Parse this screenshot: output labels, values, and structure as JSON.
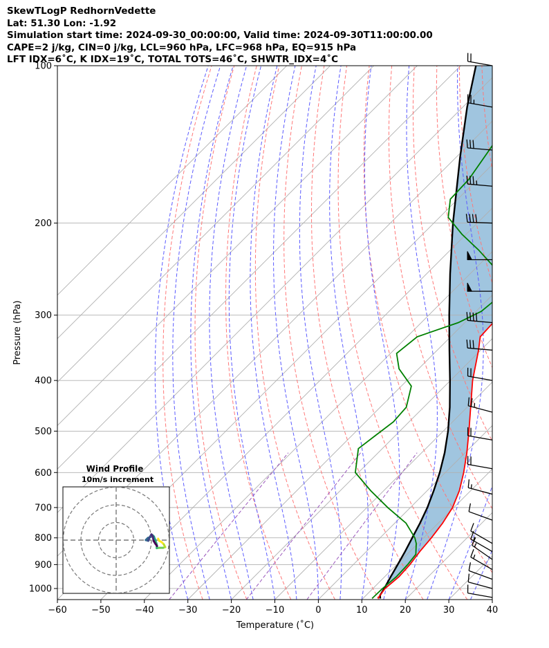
{
  "header": {
    "line1": "SkewTLogP RedhornVedette",
    "line2": "Lat: 51.30   Lon: -1.92",
    "line3": "Simulation start time: 2024-09-30_00:00:00, Valid time: 2024-09-30T11:00:00.00",
    "line4": "CAPE=2 j/kg, CIN=0 j/kg, LCL=960 hPa, LFC=968 hPa, EQ=915 hPa",
    "line5": "LFT IDX=6˚C, K IDX=19˚C, TOTAL TOTS=46˚C, SHWTR_IDX=4˚C"
  },
  "chart_data": {
    "type": "line",
    "xlabel": "Temperature ($^\\circ$C)",
    "xlabel_display": "Temperature (˚C)",
    "ylabel": "Pressure (hPa)",
    "x_ticks": [
      -60,
      -50,
      -40,
      -30,
      -20,
      -10,
      0,
      10,
      20,
      30,
      40
    ],
    "y_ticks": [
      100,
      200,
      300,
      400,
      500,
      600,
      700,
      800,
      900,
      1000
    ],
    "xlim": [
      -60,
      40
    ],
    "ylim": [
      1050,
      100
    ],
    "y_scale": "log",
    "skew": "45 degrees",
    "grid": true,
    "colors": {
      "temperature": "#ff0000",
      "dewpoint": "#008000",
      "parcel": "#000000",
      "cape_fill": "#a0c5df",
      "dry_adiabat": "#ff7777",
      "moist_adiabat": "#5a5aff",
      "mixing_ratio": "#9955bb",
      "isotherm_grid": "#b0b0b0"
    },
    "series": [
      {
        "role": "temperature",
        "points": [
          [
            1045,
            13.4
          ],
          [
            1000,
            12.8
          ],
          [
            950,
            13.3
          ],
          [
            900,
            13.0
          ],
          [
            850,
            12.3
          ],
          [
            800,
            11.8
          ],
          [
            750,
            11.0
          ],
          [
            700,
            9.7
          ],
          [
            650,
            7.4
          ],
          [
            600,
            4.2
          ],
          [
            550,
            0.4
          ],
          [
            500,
            -4.1
          ],
          [
            450,
            -9.2
          ],
          [
            400,
            -14.9
          ],
          [
            350,
            -20.5
          ],
          [
            330,
            -23.2
          ],
          [
            300,
            -23.6
          ],
          [
            280,
            -24.8
          ],
          [
            260,
            -28.6
          ],
          [
            240,
            -34.4
          ],
          [
            225,
            -39.3
          ],
          [
            210,
            -42.1
          ],
          [
            195,
            -45.8
          ],
          [
            180,
            -48.2
          ],
          [
            160,
            -52.3
          ],
          [
            140,
            -57.0
          ],
          [
            125,
            -61.4
          ],
          [
            110,
            -67.4
          ],
          [
            100,
            -72.0
          ]
        ]
      },
      {
        "role": "dewpoint",
        "points": [
          [
            1045,
            12.1
          ],
          [
            1000,
            12.2
          ],
          [
            950,
            12.7
          ],
          [
            900,
            12.5
          ],
          [
            860,
            12.0
          ],
          [
            820,
            9.6
          ],
          [
            800,
            8.0
          ],
          [
            750,
            2.6
          ],
          [
            700,
            -5.2
          ],
          [
            650,
            -13.0
          ],
          [
            600,
            -20.7
          ],
          [
            540,
            -25.5
          ],
          [
            510,
            -24.6
          ],
          [
            480,
            -23.6
          ],
          [
            450,
            -24.0
          ],
          [
            410,
            -27.7
          ],
          [
            380,
            -34.5
          ],
          [
            355,
            -38.6
          ],
          [
            330,
            -37.7
          ],
          [
            310,
            -31.5
          ],
          [
            295,
            -28.8
          ],
          [
            280,
            -28.2
          ],
          [
            265,
            -30.2
          ],
          [
            245,
            -35.1
          ],
          [
            225,
            -43.6
          ],
          [
            210,
            -51.0
          ],
          [
            195,
            -58.0
          ],
          [
            180,
            -61.7
          ],
          [
            165,
            -62.0
          ],
          [
            140,
            -64.6
          ],
          [
            120,
            -66.8
          ],
          [
            100,
            -71.5
          ]
        ]
      },
      {
        "role": "parcel",
        "points": [
          [
            1045,
            14.0
          ],
          [
            1030,
            13.2
          ],
          [
            1000,
            12.6
          ],
          [
            950,
            11.4
          ],
          [
            900,
            10.2
          ],
          [
            850,
            8.9
          ],
          [
            800,
            7.4
          ],
          [
            750,
            5.8
          ],
          [
            700,
            3.9
          ],
          [
            650,
            1.5
          ],
          [
            600,
            -1.3
          ],
          [
            550,
            -4.7
          ],
          [
            500,
            -8.9
          ],
          [
            450,
            -14.0
          ],
          [
            400,
            -20.1
          ],
          [
            350,
            -27.2
          ],
          [
            300,
            -35.3
          ],
          [
            250,
            -44.6
          ],
          [
            200,
            -55.6
          ],
          [
            150,
            -69.0
          ],
          [
            120,
            -79.0
          ],
          [
            100,
            -86.5
          ]
        ]
      }
    ],
    "wind_barbs": [
      {
        "p": 100,
        "dir": 280,
        "speed_kt": 20
      },
      {
        "p": 120,
        "dir": 280,
        "speed_kt": 25
      },
      {
        "p": 145,
        "dir": 275,
        "speed_kt": 30
      },
      {
        "p": 170,
        "dir": 275,
        "speed_kt": 35
      },
      {
        "p": 200,
        "dir": 272,
        "speed_kt": 40
      },
      {
        "p": 235,
        "dir": 270,
        "speed_kt": 50
      },
      {
        "p": 270,
        "dir": 270,
        "speed_kt": 50
      },
      {
        "p": 310,
        "dir": 275,
        "speed_kt": 40
      },
      {
        "p": 350,
        "dir": 275,
        "speed_kt": 30
      },
      {
        "p": 400,
        "dir": 280,
        "speed_kt": 20
      },
      {
        "p": 460,
        "dir": 285,
        "speed_kt": 25
      },
      {
        "p": 520,
        "dir": 280,
        "speed_kt": 20
      },
      {
        "p": 590,
        "dir": 280,
        "speed_kt": 20
      },
      {
        "p": 660,
        "dir": 285,
        "speed_kt": 15
      },
      {
        "p": 740,
        "dir": 290,
        "speed_kt": 10
      },
      {
        "p": 820,
        "dir": 300,
        "speed_kt": 10
      },
      {
        "p": 850,
        "dir": 300,
        "speed_kt": 15
      },
      {
        "p": 880,
        "dir": 305,
        "speed_kt": 15
      },
      {
        "p": 920,
        "dir": 300,
        "speed_kt": 15
      },
      {
        "p": 960,
        "dir": 290,
        "speed_kt": 10
      },
      {
        "p": 1000,
        "dir": 285,
        "speed_kt": 10
      },
      {
        "p": 1040,
        "dir": 280,
        "speed_kt": 10
      }
    ],
    "inset": {
      "title": "Wind Profile",
      "subtitle": "10m/s increment",
      "rings_ms": [
        10,
        20,
        30
      ],
      "hodograph_uv": [
        [
          4.2,
          -1.2
        ],
        [
          4.8,
          -0.6
        ],
        [
          6.2,
          -0.2
        ],
        [
          7.4,
          0.4
        ],
        [
          8.2,
          1.2
        ],
        [
          7.0,
          1.4
        ],
        [
          5.0,
          1.4
        ],
        [
          3.4,
          1.5
        ],
        [
          3.4,
          0.4
        ],
        [
          2.6,
          -0.8
        ],
        [
          1.8,
          -1.8
        ],
        [
          1.0,
          -2.2
        ],
        [
          0.0,
          -1.8
        ],
        [
          -0.8,
          -1.5
        ],
        [
          -1.6,
          -1.4
        ],
        [
          -2.8,
          -0.8
        ],
        [
          -1.4,
          -0.6
        ],
        [
          -0.6,
          -1.6
        ],
        [
          0.4,
          -2.4
        ],
        [
          1.2,
          -1.8
        ],
        [
          1.6,
          -0.6
        ],
        [
          2.6,
          0.2
        ],
        [
          3.6,
          0.9
        ]
      ]
    }
  }
}
